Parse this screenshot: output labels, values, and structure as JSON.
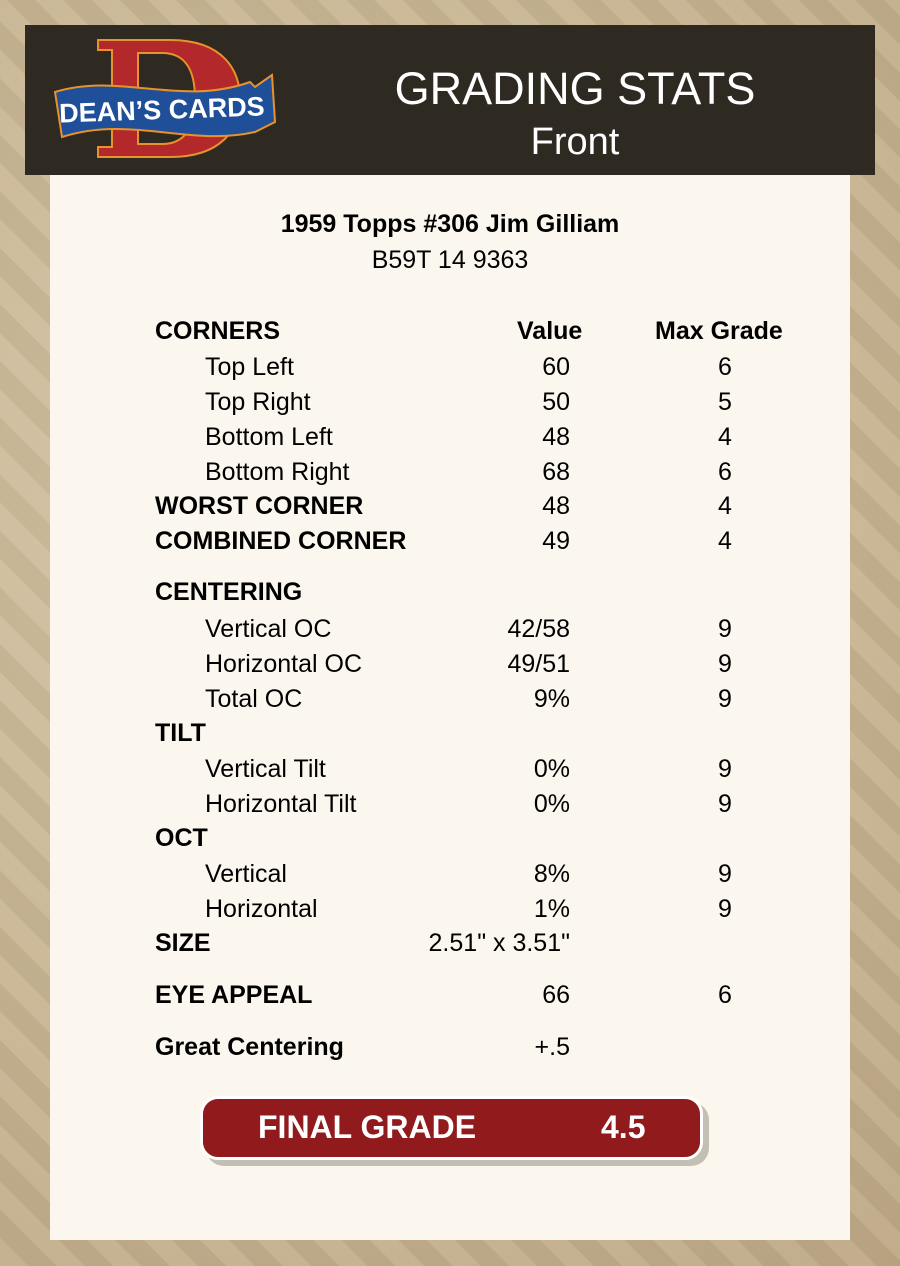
{
  "header": {
    "logo_text": "DEAN'S CARDS",
    "title": "GRADING STATS",
    "subtitle": "Front"
  },
  "card": {
    "name": "1959 Topps #306 Jim Gilliam",
    "cert": "B59T 14 9363"
  },
  "columns": {
    "value": "Value",
    "max_grade": "Max Grade"
  },
  "rows": [
    {
      "label": "CORNERS",
      "type": "head",
      "value": "",
      "max": ""
    },
    {
      "label": "Top Left",
      "type": "item",
      "value": "60",
      "max": "6"
    },
    {
      "label": "Top Right",
      "type": "item",
      "value": "50",
      "max": "5"
    },
    {
      "label": "Bottom Left",
      "type": "item",
      "value": "48",
      "max": "4"
    },
    {
      "label": "Bottom Right",
      "type": "item",
      "value": "68",
      "max": "6"
    },
    {
      "label": "WORST CORNER",
      "type": "head",
      "value": "48",
      "max": "4"
    },
    {
      "label": "COMBINED CORNER",
      "type": "head",
      "value": "49",
      "max": "4"
    },
    {
      "label": "CENTERING",
      "type": "head",
      "value": "",
      "max": ""
    },
    {
      "label": "Vertical OC",
      "type": "item",
      "value": "42/58",
      "max": "9"
    },
    {
      "label": "Horizontal OC",
      "type": "item",
      "value": "49/51",
      "max": "9"
    },
    {
      "label": "Total OC",
      "type": "item",
      "value": "9%",
      "max": "9"
    },
    {
      "label": "TILT",
      "type": "head",
      "value": "",
      "max": ""
    },
    {
      "label": "Vertical Tilt",
      "type": "item",
      "value": "0%",
      "max": "9"
    },
    {
      "label": "Horizontal Tilt",
      "type": "item",
      "value": "0%",
      "max": "9"
    },
    {
      "label": "OCT",
      "type": "head",
      "value": "",
      "max": ""
    },
    {
      "label": "Vertical",
      "type": "item",
      "value": "8%",
      "max": "9"
    },
    {
      "label": "Horizontal",
      "type": "item",
      "value": "1%",
      "max": "9"
    },
    {
      "label": "SIZE",
      "type": "head",
      "value": "2.51\" x 3.51\"",
      "max": ""
    },
    {
      "label": "EYE APPEAL",
      "type": "head",
      "value": "66",
      "max": "6"
    },
    {
      "label": "Great Centering",
      "type": "head",
      "value": "+.5",
      "max": ""
    }
  ],
  "final": {
    "label": "FINAL GRADE",
    "value": "4.5"
  },
  "colors": {
    "header_bg": "#2e2921",
    "card_bg": "#fbf7ee",
    "final_bg": "#901a1c"
  }
}
